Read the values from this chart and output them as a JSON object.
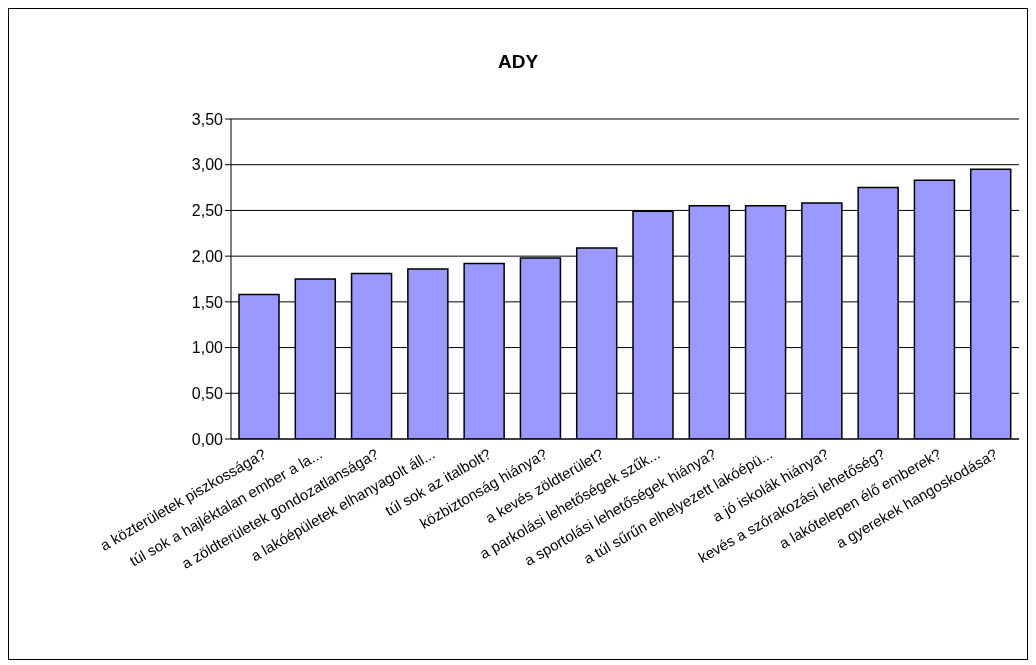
{
  "chart_data": {
    "type": "bar",
    "title": "ADY",
    "categories": [
      "a közterületek piszkossága?",
      "túl sok a hajléktalan ember a la...",
      "a zöldterületek gondozatlansága?",
      "a lakóépületek elhanyagolt áll...",
      "túl sok az italbolt?",
      "közbiztonság hiánya?",
      "a kevés zöldterület?",
      "a parkolási lehetőségek szűk...",
      "a sportolási lehetőségek hiánya?",
      "a túl sűrűn elhelyezett lakóépü...",
      "a jó iskolák hiánya?",
      "kevés a szórakozási lehetőség?",
      "a lakótelepen élő emberek?",
      "a gyerekek hangoskodása?"
    ],
    "values": [
      1.58,
      1.75,
      1.81,
      1.86,
      1.92,
      1.98,
      2.09,
      2.49,
      2.55,
      2.55,
      2.58,
      2.75,
      2.83,
      2.95
    ],
    "color": "#9999ff",
    "ylim": [
      0,
      3.5
    ],
    "yticks": [
      {
        "value": 0,
        "label": "0,00"
      },
      {
        "value": 0.5,
        "label": "0,50"
      },
      {
        "value": 1,
        "label": "1,00"
      },
      {
        "value": 1.5,
        "label": "1,50"
      },
      {
        "value": 2,
        "label": "2,00"
      },
      {
        "value": 2.5,
        "label": "2,50"
      },
      {
        "value": 3,
        "label": "3,00"
      },
      {
        "value": 3.5,
        "label": "3,50"
      }
    ],
    "grid": "y",
    "legend": false
  }
}
